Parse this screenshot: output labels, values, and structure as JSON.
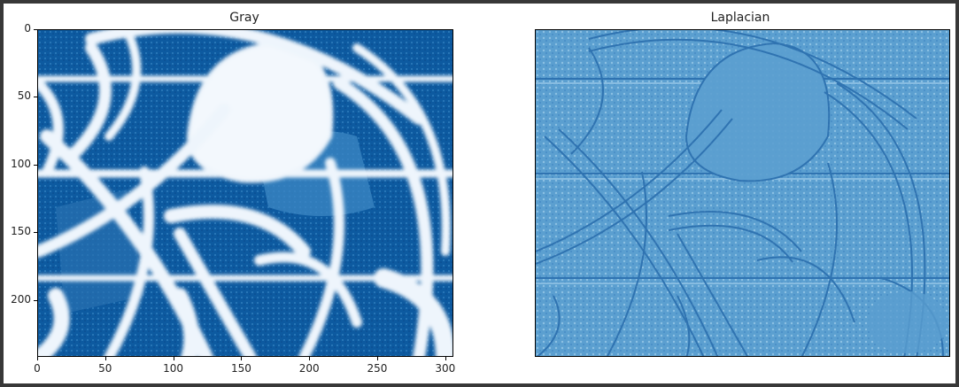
{
  "panels": [
    {
      "title": "Gray",
      "x_ticks": [
        "0",
        "50",
        "100",
        "150",
        "200",
        "250",
        "300"
      ],
      "y_ticks": [
        "0",
        "50",
        "100",
        "150",
        "200"
      ],
      "x_tick_values": [
        0,
        50,
        100,
        150,
        200,
        250,
        300
      ],
      "y_tick_values": [
        0,
        50,
        100,
        150,
        200
      ],
      "x_range": [
        0,
        306
      ],
      "y_range": [
        0,
        242
      ],
      "colormap": "Blues",
      "colors": {
        "dark": "#08519c",
        "mid": "#4292c6",
        "light": "#f7fbff"
      }
    },
    {
      "title": "Laplacian",
      "axis_off": true,
      "colormap": "Blues",
      "colors": {
        "base": "#5b9fd0",
        "light": "#8cc0e3",
        "dark": "#2b6fae"
      }
    }
  ]
}
